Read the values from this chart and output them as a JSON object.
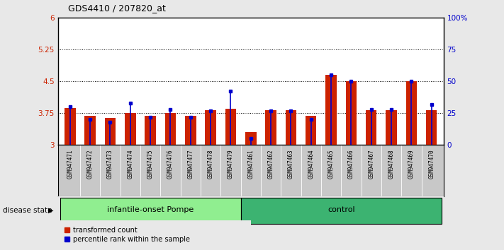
{
  "title": "GDS4410 / 207820_at",
  "samples": [
    "GSM947471",
    "GSM947472",
    "GSM947473",
    "GSM947474",
    "GSM947475",
    "GSM947476",
    "GSM947477",
    "GSM947478",
    "GSM947479",
    "GSM947461",
    "GSM947462",
    "GSM947463",
    "GSM947464",
    "GSM947465",
    "GSM947466",
    "GSM947467",
    "GSM947468",
    "GSM947469",
    "GSM947470"
  ],
  "red_values": [
    3.87,
    3.68,
    3.63,
    3.75,
    3.68,
    3.75,
    3.68,
    3.82,
    3.86,
    3.3,
    3.82,
    3.82,
    3.68,
    4.65,
    4.5,
    3.82,
    3.82,
    4.5,
    3.82
  ],
  "blue_values": [
    30,
    20,
    18,
    33,
    22,
    28,
    22,
    27,
    42,
    5,
    27,
    27,
    20,
    55,
    50,
    28,
    28,
    50,
    32
  ],
  "ylim_left": [
    3.0,
    6.0
  ],
  "ylim_right": [
    0,
    100
  ],
  "yticks_left": [
    3.0,
    3.75,
    4.5,
    5.25,
    6.0
  ],
  "yticks_right": [
    0,
    25,
    50,
    75,
    100
  ],
  "ytick_labels_left": [
    "3",
    "3.75",
    "4.5",
    "5.25",
    "6"
  ],
  "ytick_labels_right": [
    "0",
    "25",
    "50",
    "75",
    "100%"
  ],
  "hlines": [
    3.75,
    4.5,
    5.25
  ],
  "groups": [
    {
      "label": "infantile-onset Pompe",
      "start": 0,
      "end": 9,
      "color": "#90EE90"
    },
    {
      "label": "control",
      "start": 9,
      "end": 19,
      "color": "#3CB371"
    }
  ],
  "group_label": "disease state",
  "bar_color": "#CC2200",
  "blue_color": "#0000CC",
  "bar_width": 0.55,
  "background_color": "#E8E8E8",
  "plot_bg_color": "#FFFFFF",
  "tick_area_color": "#C8C8C8"
}
